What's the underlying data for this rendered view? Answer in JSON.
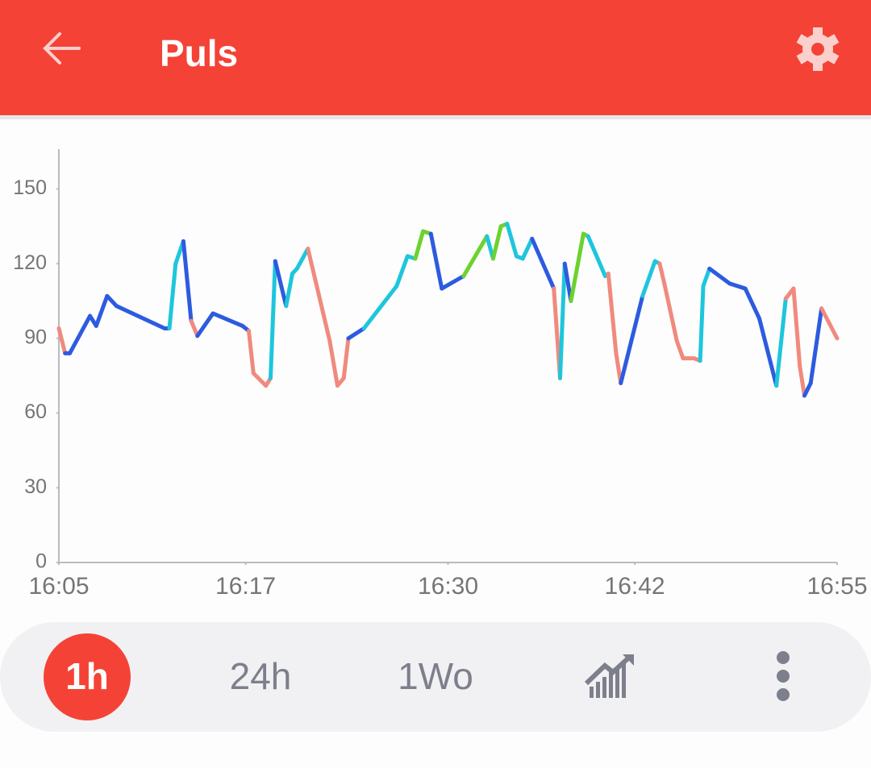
{
  "header": {
    "title": "Puls"
  },
  "chart_data": {
    "type": "line",
    "x": [
      965,
      965.4,
      965.7,
      967,
      967.4,
      968.1,
      968.7,
      971.8,
      972.1,
      972.5,
      973,
      973.5,
      973.9,
      974.9,
      976.8,
      977.2,
      977.5,
      978.3,
      978.6,
      978.9,
      979.6,
      980,
      980.3,
      981,
      982.4,
      982.9,
      983.3,
      983.6,
      984.6,
      986.7,
      987.4,
      987.9,
      988.4,
      988.9,
      989.6,
      991,
      992.5,
      992.9,
      993.4,
      993.8,
      994.4,
      994.8,
      995.4,
      996.8,
      997.2,
      997.5,
      997.9,
      998.7,
      999,
      1000.1,
      1000.3,
      1000.8,
      1001.1,
      1002.5,
      1003.3,
      1003.6,
      1003.9,
      1004.7,
      1005.1,
      1005.8,
      1006.2,
      1006.4,
      1006.8,
      1008.1,
      1009.1,
      1009.7,
      1010,
      1011.1,
      1011.7,
      1012.2,
      1012.6,
      1012.9,
      1013.3,
      1014,
      1015
    ],
    "values": [
      94,
      84,
      84,
      99,
      95,
      107,
      103,
      94,
      94,
      120,
      129,
      97,
      91,
      100,
      95,
      93,
      76,
      71,
      74,
      121,
      103,
      116,
      118,
      126,
      89,
      71,
      74,
      90,
      94,
      111,
      123,
      122,
      133,
      132,
      110,
      115,
      131,
      122,
      135,
      136,
      123,
      122,
      130,
      110,
      74,
      120,
      105,
      132,
      131,
      115,
      116,
      84,
      72,
      107,
      121,
      120,
      112,
      89,
      82,
      82,
      81,
      111,
      118,
      112,
      110,
      102,
      98,
      71,
      106,
      110,
      79,
      67,
      72,
      102,
      90
    ],
    "point_colors": [
      "#f08a7e",
      "#f08a7e",
      "#2d5be0",
      "#2d5be0",
      "#2d5be0",
      "#2d5be0",
      "#2d5be0",
      "#2d5be0",
      "#2d5be0",
      "#1ec6dc",
      "#1ec6dc",
      "#2d5be0",
      "#f08a7e",
      "#2d5be0",
      "#2d5be0",
      "#2d5be0",
      "#f08a7e",
      "#f08a7e",
      "#f08a7e",
      "#1ec6dc",
      "#2d5be0",
      "#1ec6dc",
      "#1ec6dc",
      "#1ec6dc",
      "#f08a7e",
      "#f08a7e",
      "#f08a7e",
      "#f08a7e",
      "#2d5be0",
      "#1ec6dc",
      "#1ec6dc",
      "#1ec6dc",
      "#6cd22e",
      "#6cd22e",
      "#2d5be0",
      "#2d5be0",
      "#6cd22e",
      "#1ec6dc",
      "#6cd22e",
      "#6cd22e",
      "#1ec6dc",
      "#1ec6dc",
      "#1ec6dc",
      "#2d5be0",
      "#f08a7e",
      "#1ec6dc",
      "#2d5be0",
      "#6cd22e",
      "#6cd22e",
      "#1ec6dc",
      "#1ec6dc",
      "#f08a7e",
      "#f08a7e",
      "#2d5be0",
      "#1ec6dc",
      "#1ec6dc",
      "#f08a7e",
      "#f08a7e",
      "#f08a7e",
      "#f08a7e",
      "#f08a7e",
      "#1ec6dc",
      "#1ec6dc",
      "#2d5be0",
      "#2d5be0",
      "#2d5be0",
      "#2d5be0",
      "#2d5be0",
      "#1ec6dc",
      "#f08a7e",
      "#f08a7e",
      "#f08a7e",
      "#2d5be0",
      "#2d5be0",
      "#f08a7e"
    ],
    "xlim": [
      965,
      1015
    ],
    "xticks": [
      {
        "value": 965,
        "label": "16:05"
      },
      {
        "value": 977,
        "label": "16:17"
      },
      {
        "value": 990,
        "label": "16:30"
      },
      {
        "value": 1002,
        "label": "16:42"
      },
      {
        "value": 1015,
        "label": "16:55"
      }
    ],
    "ylim": [
      0,
      166
    ],
    "yticks": [
      0,
      30,
      60,
      90,
      120,
      150
    ]
  },
  "range_tabs": [
    "1h",
    "24h",
    "1Wo"
  ],
  "selected_tab": 0
}
